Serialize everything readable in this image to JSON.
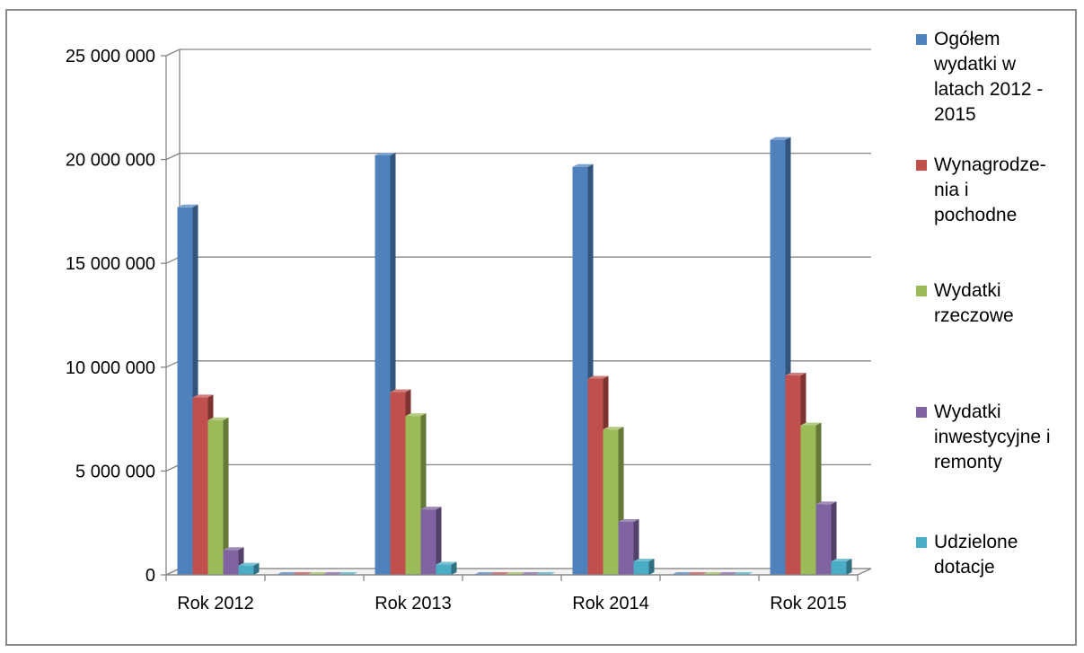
{
  "chart_data": {
    "type": "bar",
    "categories": [
      "Rok 2012",
      "",
      "Rok 2013",
      "",
      "Rok 2014",
      "",
      "Rok 2015"
    ],
    "series": [
      {
        "name": "Ogółem wydatki w latach 2012 - 2015",
        "color": "#4f81bd",
        "values": [
          17700000,
          0,
          20200000,
          0,
          19650000,
          0,
          20950000
        ]
      },
      {
        "name": "Wynagrodze-nia i pochodne",
        "color": "#c0504d",
        "values": [
          8550000,
          0,
          8800000,
          0,
          9450000,
          0,
          9600000
        ]
      },
      {
        "name": "Wydatki rzeczowe",
        "color": "#9bbb59",
        "values": [
          7450000,
          0,
          7650000,
          0,
          7000000,
          0,
          7200000
        ]
      },
      {
        "name": "Wydatki inwestycyjne i remonty",
        "color": "#8064a2",
        "values": [
          1200000,
          0,
          3150000,
          0,
          2550000,
          0,
          3400000
        ]
      },
      {
        "name": "Udzielone dotacje",
        "color": "#4bacc6",
        "values": [
          450000,
          0,
          500000,
          0,
          650000,
          0,
          650000
        ]
      }
    ],
    "ylim": [
      0,
      25000000
    ],
    "yticks": [
      {
        "value": 0,
        "label": "0"
      },
      {
        "value": 5000000,
        "label": "5 000 000"
      },
      {
        "value": 10000000,
        "label": "10 000 000"
      },
      {
        "value": 15000000,
        "label": "15 000 000"
      },
      {
        "value": 20000000,
        "label": "20 000 000"
      },
      {
        "value": 25000000,
        "label": "25 000 000"
      }
    ],
    "grid": true,
    "legend_position": "right",
    "legend_lines": [
      [
        "Ogółem",
        "wydatki w",
        "latach 2012 -",
        "2015"
      ],
      [
        "Wynagrodze-",
        "nia i",
        "pochodne"
      ],
      [
        "Wydatki",
        "rzeczowe"
      ],
      [
        "Wydatki",
        "inwestycyjne i",
        "remonty"
      ],
      [
        "Udzielone",
        "dotacje"
      ]
    ]
  }
}
